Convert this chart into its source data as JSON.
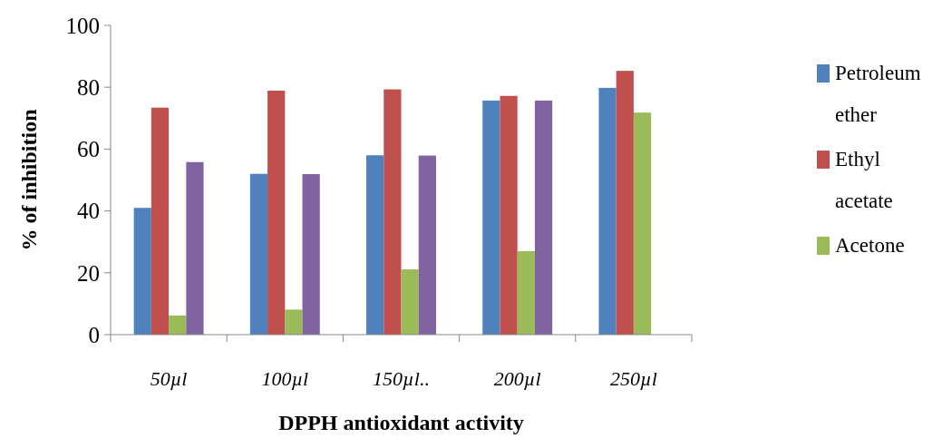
{
  "chart_data": {
    "type": "bar",
    "xlabel": "DPPH antioxidant activity",
    "ylabel": "% of inhibition",
    "categories": [
      "50µl",
      "100µl",
      "150µl..",
      "200µl",
      "250µl"
    ],
    "series": [
      {
        "name": "Petroleum ether",
        "color": "#4f81bd",
        "values": [
          41,
          52,
          58,
          75.7,
          79.8
        ]
      },
      {
        "name": "Ethyl acetate",
        "color": "#c0504d",
        "values": [
          73.4,
          78.9,
          79.3,
          77.2,
          85.3
        ]
      },
      {
        "name": "Acetone",
        "color": "#9bbb59",
        "values": [
          6.2,
          8.1,
          21.1,
          27,
          71.8
        ]
      },
      {
        "color": "#8064a2",
        "values": [
          55.8,
          51.9,
          57.9,
          75.7,
          null
        ]
      }
    ],
    "ylim": [
      0,
      100
    ],
    "yticks": [
      0,
      20,
      40,
      60,
      80,
      100
    ],
    "grid": false,
    "legend": "right"
  }
}
